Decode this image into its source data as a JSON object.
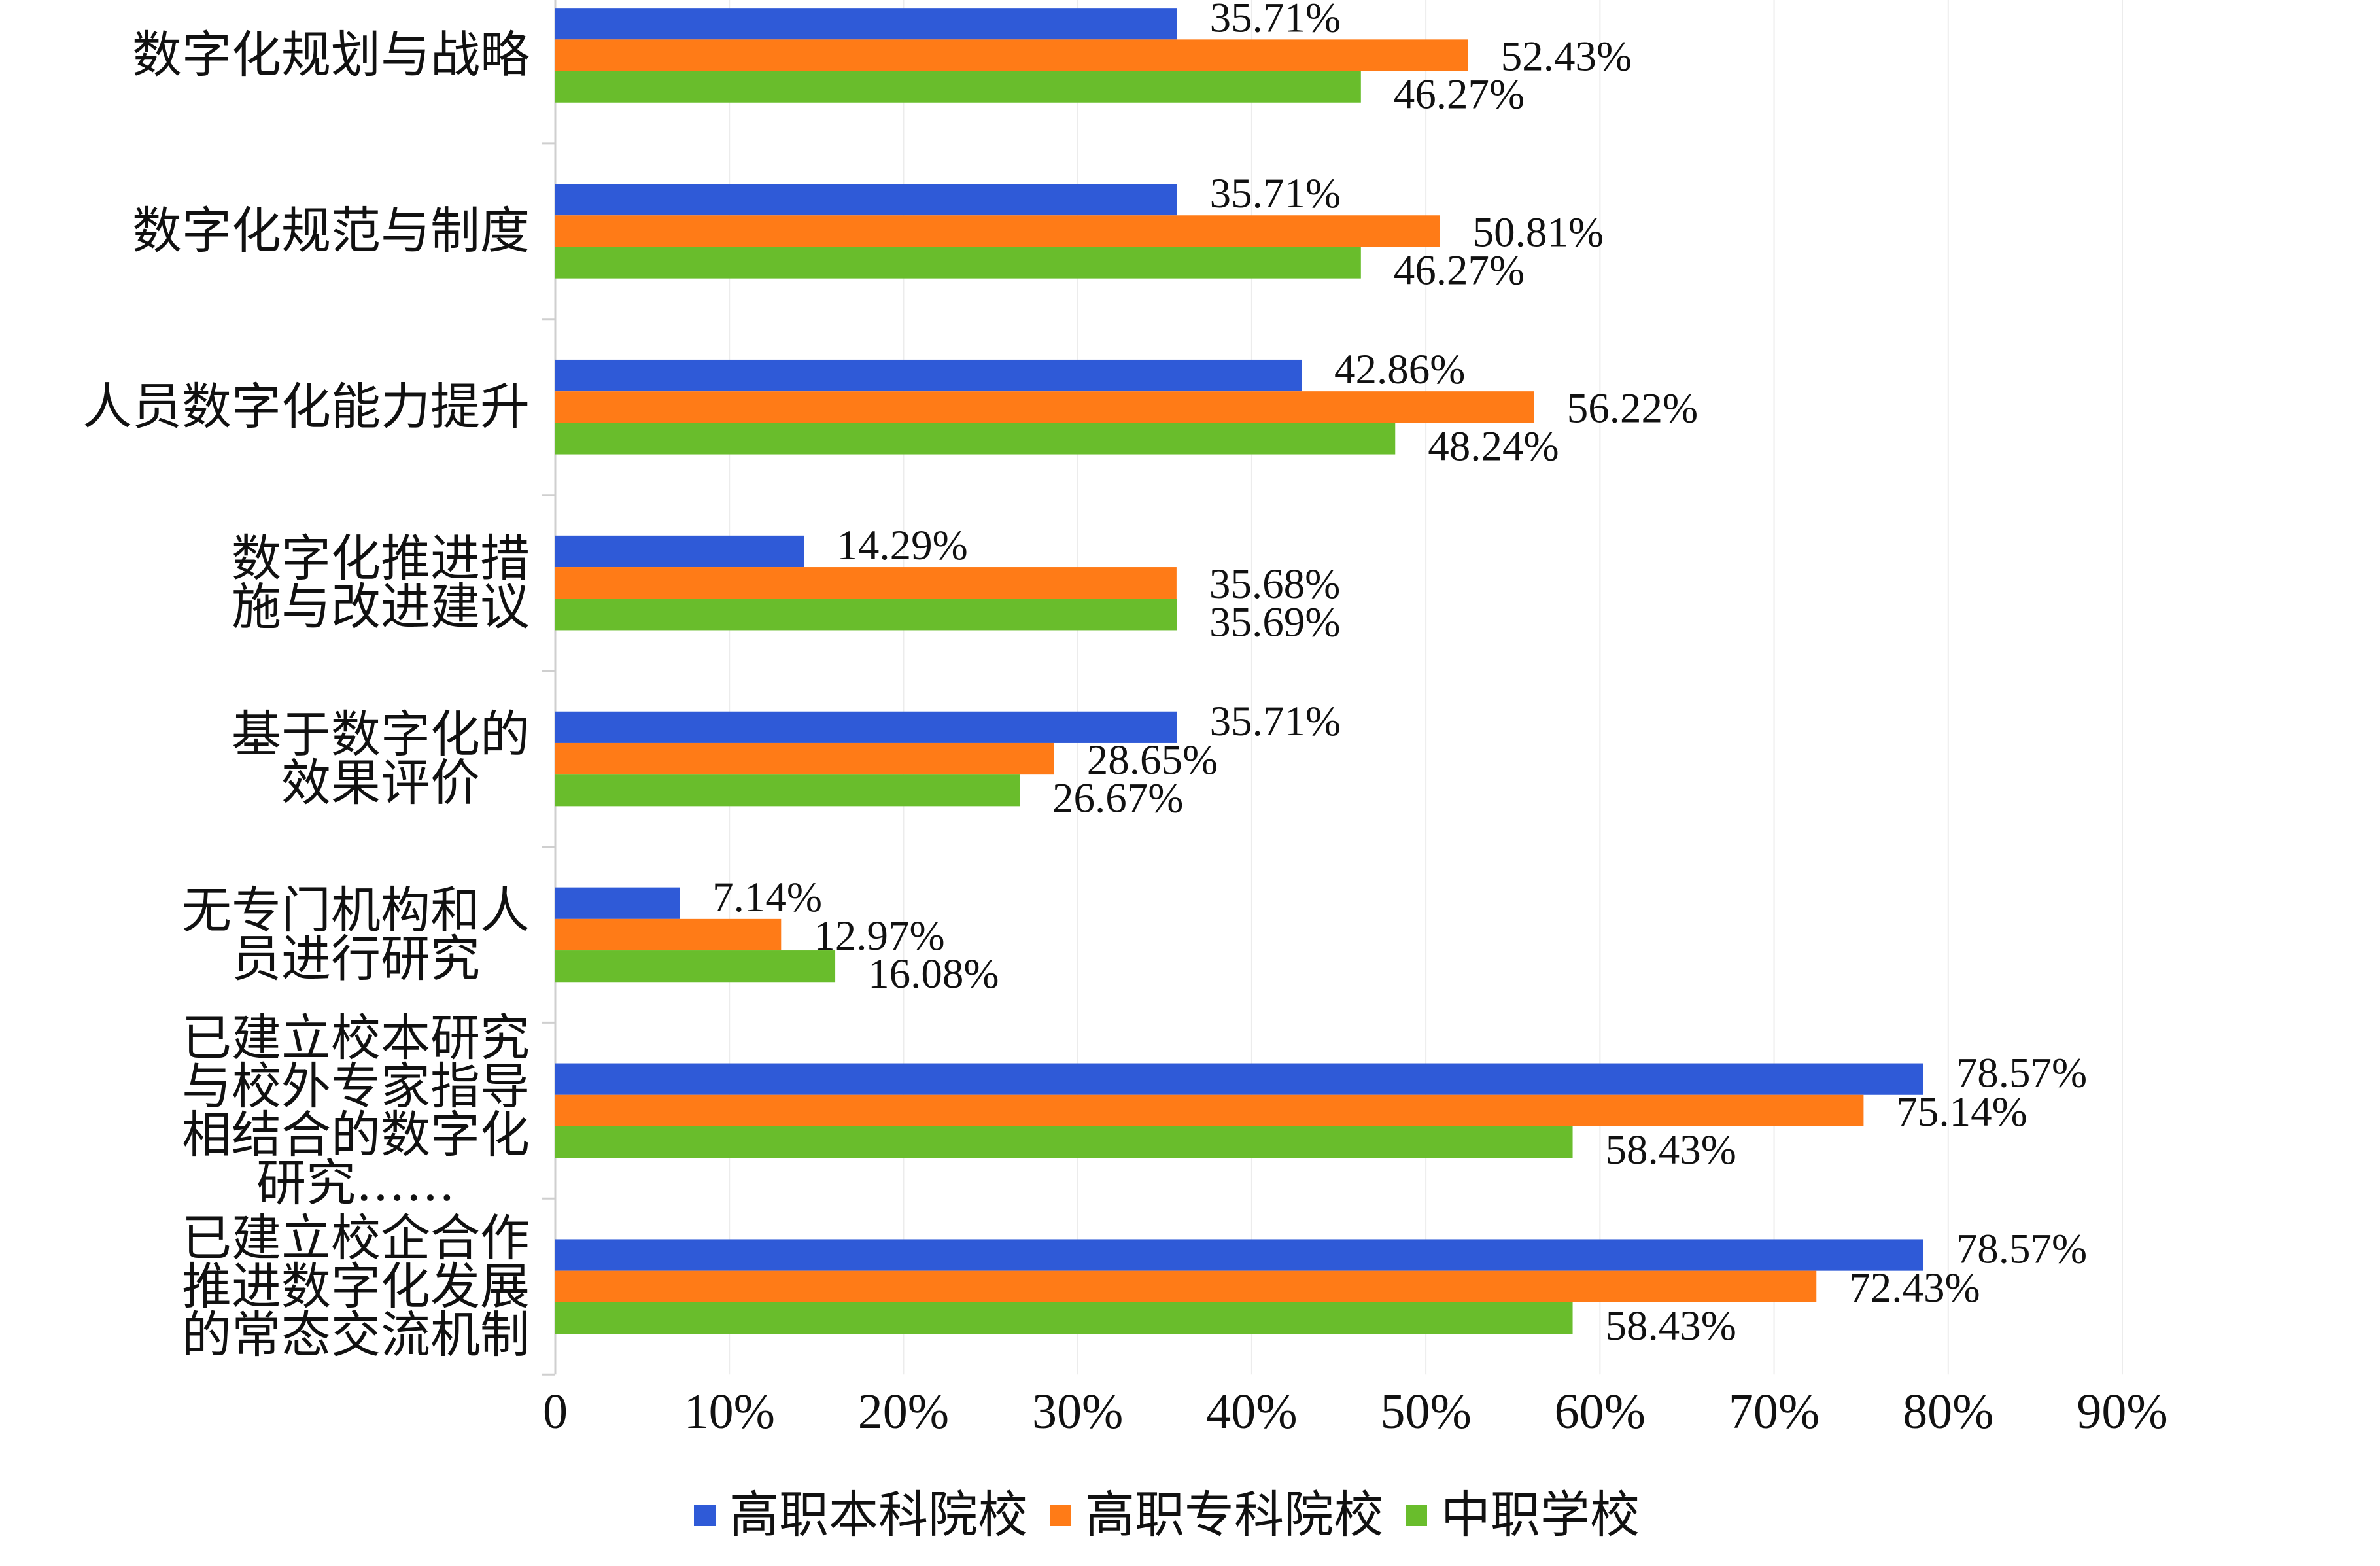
{
  "chart_data": {
    "type": "bar",
    "orientation": "horizontal",
    "categories": [
      "数字化规划与战略",
      "数字化规范与制度",
      "人员数字化能力提升",
      "数字化推进措\n施与改进建议",
      "基于数字化的\n效果评价",
      "无专门机构和人\n员进行研究",
      "已建立校本研究\n与校外专家指导\n相结合的数字化\n研究……",
      "已建立校企合作\n推进数字化发展\n的常态交流机制"
    ],
    "series": [
      {
        "name": "高职本科院校",
        "color": "#2F5AD7",
        "values": [
          35.71,
          35.71,
          42.86,
          14.29,
          35.71,
          7.14,
          78.57,
          78.57
        ]
      },
      {
        "name": "高职专科院校",
        "color": "#FF7B17",
        "values": [
          52.43,
          50.81,
          56.22,
          35.68,
          28.65,
          12.97,
          75.14,
          72.43
        ]
      },
      {
        "name": "中职学校",
        "color": "#69BD2C",
        "values": [
          46.27,
          46.27,
          48.24,
          35.69,
          26.67,
          16.08,
          58.43,
          58.43
        ]
      }
    ],
    "unit": "%",
    "xlim": [
      0,
      90
    ],
    "x_tick_labels": [
      "0",
      "10%",
      "20%",
      "30%",
      "40%",
      "50%",
      "60%",
      "70%",
      "80%",
      "90%"
    ],
    "grid": true,
    "legend_position": "bottom"
  }
}
